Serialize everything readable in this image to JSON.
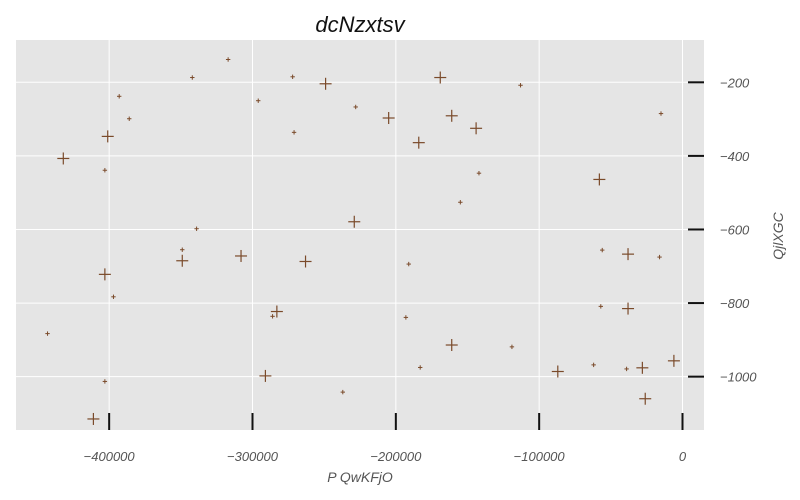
{
  "chart_data": {
    "type": "scatter",
    "title": "dcNzxtsv",
    "xlabel": "P QwKFjO",
    "ylabel": "QjlXGC",
    "xlim": [
      -465000,
      15000
    ],
    "ylim": [
      -1145000,
      -85000
    ],
    "x_ticks": [
      -400000,
      -300000,
      -200000,
      -100000,
      0
    ],
    "x_tick_labels": [
      "−400000",
      "−300000",
      "−200000",
      "−100000",
      "0"
    ],
    "y_ticks": [
      -200,
      -400,
      -600,
      -800,
      -1000
    ],
    "y_tick_labels": [
      "−200",
      "−400",
      "−600",
      "−800",
      "−1000"
    ],
    "y_tick_values": [
      -200000,
      -400000,
      -600000,
      -800000,
      -1000000
    ],
    "y_axis_position": "right",
    "grid": true,
    "marker": "plus",
    "colors": {
      "marker": "#7a4a2a",
      "plot_bg": "#e5e5e5",
      "grid": "#ffffff",
      "tick": "#111111"
    },
    "points": [
      {
        "x": -317000,
        "y": -138000,
        "size": "small"
      },
      {
        "x": -342000,
        "y": -187000,
        "size": "small"
      },
      {
        "x": -272000,
        "y": -185000,
        "size": "small"
      },
      {
        "x": -249000,
        "y": -204000,
        "size": "large"
      },
      {
        "x": -169000,
        "y": -187000,
        "size": "large"
      },
      {
        "x": -113000,
        "y": -208000,
        "size": "small"
      },
      {
        "x": -393000,
        "y": -238000,
        "size": "small"
      },
      {
        "x": -296000,
        "y": -250000,
        "size": "small"
      },
      {
        "x": -228000,
        "y": -267000,
        "size": "small"
      },
      {
        "x": -205000,
        "y": -297000,
        "size": "large"
      },
      {
        "x": -161000,
        "y": -291000,
        "size": "large"
      },
      {
        "x": -144000,
        "y": -325000,
        "size": "large"
      },
      {
        "x": -15000,
        "y": -285000,
        "size": "small"
      },
      {
        "x": -386000,
        "y": -299000,
        "size": "small"
      },
      {
        "x": -401000,
        "y": -347000,
        "size": "large"
      },
      {
        "x": -271000,
        "y": -336000,
        "size": "small"
      },
      {
        "x": -184000,
        "y": -364000,
        "size": "large"
      },
      {
        "x": -432000,
        "y": -407000,
        "size": "large"
      },
      {
        "x": -403000,
        "y": -439000,
        "size": "small"
      },
      {
        "x": -142000,
        "y": -447000,
        "size": "small"
      },
      {
        "x": -58000,
        "y": -464000,
        "size": "large"
      },
      {
        "x": -155000,
        "y": -526000,
        "size": "small"
      },
      {
        "x": -229000,
        "y": -579000,
        "size": "large"
      },
      {
        "x": -339000,
        "y": -598000,
        "size": "small"
      },
      {
        "x": -349000,
        "y": -655000,
        "size": "small"
      },
      {
        "x": -349000,
        "y": -685000,
        "size": "large"
      },
      {
        "x": -308000,
        "y": -672000,
        "size": "large"
      },
      {
        "x": -263000,
        "y": -687000,
        "size": "large"
      },
      {
        "x": -191000,
        "y": -694000,
        "size": "small"
      },
      {
        "x": -56000,
        "y": -656000,
        "size": "small"
      },
      {
        "x": -38000,
        "y": -667000,
        "size": "large"
      },
      {
        "x": -16000,
        "y": -675000,
        "size": "small"
      },
      {
        "x": -403000,
        "y": -722000,
        "size": "large"
      },
      {
        "x": -397000,
        "y": -783000,
        "size": "small"
      },
      {
        "x": -283000,
        "y": -823000,
        "size": "large"
      },
      {
        "x": -286000,
        "y": -836000,
        "size": "small"
      },
      {
        "x": -193000,
        "y": -839000,
        "size": "small"
      },
      {
        "x": -57000,
        "y": -809000,
        "size": "small"
      },
      {
        "x": -38000,
        "y": -815000,
        "size": "large"
      },
      {
        "x": -443000,
        "y": -883000,
        "size": "small"
      },
      {
        "x": -161000,
        "y": -914000,
        "size": "large"
      },
      {
        "x": -119000,
        "y": -919000,
        "size": "small"
      },
      {
        "x": -183000,
        "y": -975000,
        "size": "small"
      },
      {
        "x": -87000,
        "y": -986000,
        "size": "large"
      },
      {
        "x": -62000,
        "y": -968000,
        "size": "small"
      },
      {
        "x": -39000,
        "y": -979000,
        "size": "small"
      },
      {
        "x": -28000,
        "y": -976000,
        "size": "large"
      },
      {
        "x": -6000,
        "y": -957000,
        "size": "large"
      },
      {
        "x": -291000,
        "y": -998000,
        "size": "large"
      },
      {
        "x": -403000,
        "y": -1013000,
        "size": "small"
      },
      {
        "x": -237000,
        "y": -1042000,
        "size": "small"
      },
      {
        "x": -26000,
        "y": -1060000,
        "size": "large"
      },
      {
        "x": -411000,
        "y": -1115000,
        "size": "large"
      }
    ]
  }
}
